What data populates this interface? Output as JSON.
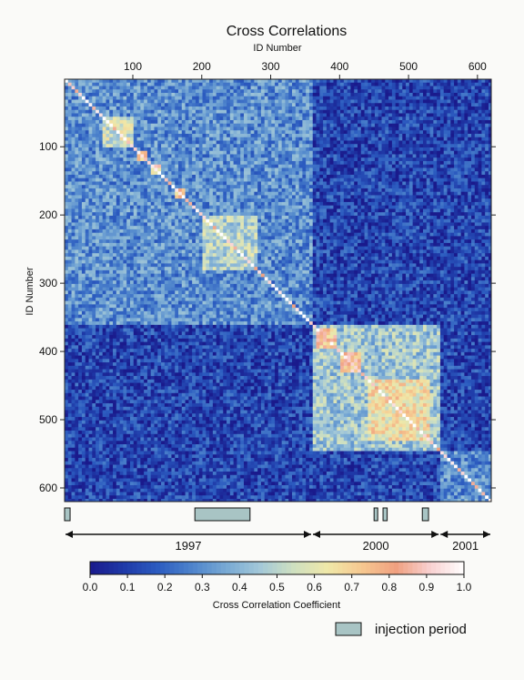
{
  "chart_data": {
    "type": "heatmap",
    "title": "Cross Correlations",
    "xlabel": "ID Number",
    "ylabel": "ID Number",
    "x_axis_position": "top",
    "xlim": [
      1,
      620
    ],
    "ylim": [
      620,
      1
    ],
    "x_ticks": [
      100,
      200,
      300,
      400,
      500,
      600
    ],
    "y_ticks": [
      100,
      200,
      300,
      400,
      500,
      600
    ],
    "colorbar": {
      "label": "Cross Correlation Coefficient",
      "range": [
        0.0,
        1.0
      ],
      "ticks": [
        "0.0",
        "0.1",
        "0.2",
        "0.3",
        "0.4",
        "0.5",
        "0.6",
        "0.7",
        "0.8",
        "0.9",
        "1.0"
      ],
      "colors": [
        "#1a1a8c",
        "#1f3aa8",
        "#2c5cc0",
        "#4e84cc",
        "#78a9d4",
        "#a3c8d8",
        "#cfe0c0",
        "#f0e8a8",
        "#f6c890",
        "#f0a080",
        "#f8d0d0",
        "#ffffff"
      ]
    },
    "blocks": [
      {
        "period": "1997",
        "id_start": 1,
        "id_end": 360,
        "mean_correlation": 0.3
      },
      {
        "period": "2000",
        "id_start": 360,
        "id_end": 545,
        "mean_correlation": 0.45
      },
      {
        "period": "2001",
        "id_start": 545,
        "id_end": 620,
        "mean_correlation": 0.3
      }
    ],
    "off_diagonal_mean_correlation": 0.12,
    "high_correlation_subblocks": [
      {
        "id_start": 55,
        "id_end": 100,
        "value": 0.55
      },
      {
        "id_start": 105,
        "id_end": 118,
        "value": 0.75
      },
      {
        "id_start": 125,
        "id_end": 138,
        "value": 0.75
      },
      {
        "id_start": 158,
        "id_end": 172,
        "value": 0.7
      },
      {
        "id_start": 200,
        "id_end": 280,
        "value": 0.5
      },
      {
        "id_start": 365,
        "id_end": 395,
        "value": 0.75
      },
      {
        "id_start": 400,
        "id_end": 430,
        "value": 0.8
      },
      {
        "id_start": 440,
        "id_end": 530,
        "value": 0.65
      }
    ],
    "timeline": [
      {
        "label": "1997",
        "id_start": 1,
        "id_end": 360
      },
      {
        "label": "2000",
        "id_start": 360,
        "id_end": 545
      },
      {
        "label": "2001",
        "id_start": 545,
        "id_end": 620
      }
    ],
    "injection_periods": [
      {
        "id_start": 1,
        "id_end": 9
      },
      {
        "id_start": 190,
        "id_end": 270
      },
      {
        "id_start": 450,
        "id_end": 455
      },
      {
        "id_start": 463,
        "id_end": 469
      },
      {
        "id_start": 520,
        "id_end": 529
      }
    ],
    "legend": {
      "label": "injection period",
      "color": "#a8c4c4",
      "placement": "bottom-right"
    }
  }
}
